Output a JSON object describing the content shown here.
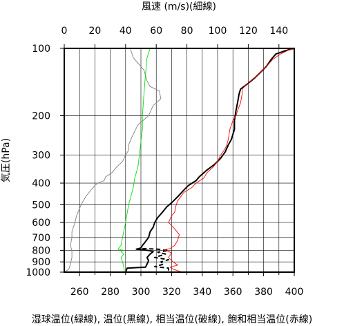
{
  "chart_data": {
    "type": "line",
    "title_top": "風速 (m/s)(細線)",
    "ylabel": "気圧(hPa)",
    "xlabel_bottom": "湿球温位(緑線), 温位(黒線), 相当温位(破線), 飽和相当温位(赤線)",
    "y_scale": "log",
    "y_reversed": true,
    "ylim": [
      1000,
      100
    ],
    "y_ticks": [
      100,
      200,
      300,
      400,
      500,
      600,
      700,
      800,
      900,
      1000
    ],
    "y_tick_labels": [
      "100",
      "200",
      "300",
      "400",
      "500",
      "600",
      "700",
      "800",
      "900",
      "1000"
    ],
    "x_bottom": {
      "xlim": [
        250,
        400
      ],
      "ticks": [
        260,
        280,
        300,
        320,
        340,
        360,
        380,
        400
      ],
      "tick_labels": [
        "260",
        "280",
        "300",
        "320",
        "340",
        "360",
        "380",
        "400"
      ],
      "grid_step": 10
    },
    "x_top": {
      "xlim": [
        0,
        150
      ],
      "ticks": [
        0,
        20,
        40,
        60,
        80,
        100,
        120,
        140
      ],
      "tick_labels": [
        "0",
        "20",
        "40",
        "60",
        "80",
        "100",
        "120",
        "140"
      ]
    },
    "grid": true,
    "series": [
      {
        "name": "風速",
        "axis": "top",
        "color": "#808080",
        "style": "thin",
        "points": [
          [
            43,
            100
          ],
          [
            45,
            110
          ],
          [
            52,
            125
          ],
          [
            54,
            140
          ],
          [
            56,
            148
          ],
          [
            62,
            155
          ],
          [
            63,
            168
          ],
          [
            58,
            180
          ],
          [
            55,
            200
          ],
          [
            48,
            220
          ],
          [
            44,
            250
          ],
          [
            42,
            270
          ],
          [
            42,
            285
          ],
          [
            40,
            300
          ],
          [
            38,
            320
          ],
          [
            34,
            340
          ],
          [
            31,
            360
          ],
          [
            27,
            375
          ],
          [
            26,
            390
          ],
          [
            22,
            400
          ],
          [
            20,
            410
          ],
          [
            18,
            425
          ],
          [
            14,
            460
          ],
          [
            11,
            500
          ],
          [
            8,
            560
          ],
          [
            7,
            600
          ],
          [
            5,
            660
          ],
          [
            5,
            700
          ],
          [
            4,
            760
          ],
          [
            5,
            800
          ],
          [
            5,
            860
          ],
          [
            4,
            920
          ],
          [
            3,
            970
          ],
          [
            0,
            1000
          ]
        ]
      },
      {
        "name": "湿球温位",
        "axis": "bottom",
        "color": "#00e000",
        "style": "thin",
        "points": [
          [
            306,
            100
          ],
          [
            304,
            110
          ],
          [
            303,
            130
          ],
          [
            302,
            160
          ],
          [
            301,
            200
          ],
          [
            301,
            230
          ],
          [
            300,
            260
          ],
          [
            299,
            300
          ],
          [
            298,
            340
          ],
          [
            296,
            380
          ],
          [
            295,
            420
          ],
          [
            292,
            500
          ],
          [
            290,
            600
          ],
          [
            288,
            700
          ],
          [
            287,
            760
          ],
          [
            285,
            790
          ],
          [
            289,
            800
          ],
          [
            287,
            810
          ],
          [
            289,
            830
          ],
          [
            287,
            860
          ],
          [
            288,
            900
          ],
          [
            289,
            960
          ],
          [
            289,
            1000
          ]
        ]
      },
      {
        "name": "温位",
        "axis": "bottom",
        "color": "#000000",
        "style": "thick",
        "points": [
          [
            400,
            100
          ],
          [
            395,
            102
          ],
          [
            388,
            106
          ],
          [
            385,
            112
          ],
          [
            382,
            120
          ],
          [
            378,
            128
          ],
          [
            374,
            136
          ],
          [
            369,
            145
          ],
          [
            365,
            152
          ],
          [
            364,
            160
          ],
          [
            363,
            175
          ],
          [
            362,
            190
          ],
          [
            361,
            210
          ],
          [
            361,
            230
          ],
          [
            359,
            255
          ],
          [
            357,
            270
          ],
          [
            355,
            290
          ],
          [
            352,
            310
          ],
          [
            348,
            330
          ],
          [
            343,
            350
          ],
          [
            338,
            375
          ],
          [
            336,
            390
          ],
          [
            331,
            410
          ],
          [
            328,
            430
          ],
          [
            324,
            460
          ],
          [
            320,
            490
          ],
          [
            317,
            510
          ],
          [
            314,
            540
          ],
          [
            311,
            570
          ],
          [
            309,
            600
          ],
          [
            308,
            630
          ],
          [
            306,
            660
          ],
          [
            305,
            700
          ],
          [
            303,
            730
          ],
          [
            301,
            760
          ],
          [
            300,
            780
          ],
          [
            297,
            790
          ],
          [
            305,
            800
          ],
          [
            308,
            810
          ],
          [
            306,
            830
          ],
          [
            304,
            860
          ],
          [
            305,
            890
          ],
          [
            304,
            920
          ],
          [
            303,
            950
          ],
          [
            291,
            960
          ],
          [
            290,
            1000
          ]
        ]
      },
      {
        "name": "相当温位",
        "axis": "bottom",
        "color": "#000000",
        "style": "dashed",
        "points": [
          [
            301,
            785
          ],
          [
            311,
            790
          ],
          [
            318,
            800
          ],
          [
            311,
            815
          ],
          [
            316,
            830
          ],
          [
            309,
            860
          ],
          [
            318,
            880
          ],
          [
            313,
            900
          ],
          [
            315,
            920
          ],
          [
            309,
            945
          ],
          [
            318,
            960
          ],
          [
            318,
            990
          ]
        ]
      },
      {
        "name": "飽和相当温位",
        "axis": "bottom",
        "color": "#ff0000",
        "style": "thin",
        "points": [
          [
            400,
            100
          ],
          [
            396,
            102
          ],
          [
            391,
            106
          ],
          [
            386,
            112
          ],
          [
            382,
            120
          ],
          [
            378,
            128
          ],
          [
            374,
            136
          ],
          [
            369,
            145
          ],
          [
            366,
            152
          ],
          [
            366,
            160
          ],
          [
            365,
            175
          ],
          [
            363,
            190
          ],
          [
            362,
            200
          ],
          [
            360,
            210
          ],
          [
            358,
            230
          ],
          [
            357,
            255
          ],
          [
            356,
            270
          ],
          [
            355,
            280
          ],
          [
            352,
            300
          ],
          [
            350,
            320
          ],
          [
            347,
            340
          ],
          [
            343,
            360
          ],
          [
            341,
            380
          ],
          [
            336,
            400
          ],
          [
            333,
            420
          ],
          [
            328,
            440
          ],
          [
            326,
            460
          ],
          [
            324,
            480
          ],
          [
            323,
            500
          ],
          [
            322,
            540
          ],
          [
            320,
            560
          ],
          [
            318,
            600
          ],
          [
            322,
            640
          ],
          [
            325,
            680
          ],
          [
            324,
            720
          ],
          [
            322,
            760
          ],
          [
            319,
            785
          ],
          [
            315,
            795
          ],
          [
            320,
            820
          ],
          [
            318,
            860
          ],
          [
            321,
            900
          ],
          [
            324,
            930
          ],
          [
            319,
            950
          ],
          [
            321,
            970
          ],
          [
            327,
            1000
          ]
        ]
      }
    ]
  }
}
